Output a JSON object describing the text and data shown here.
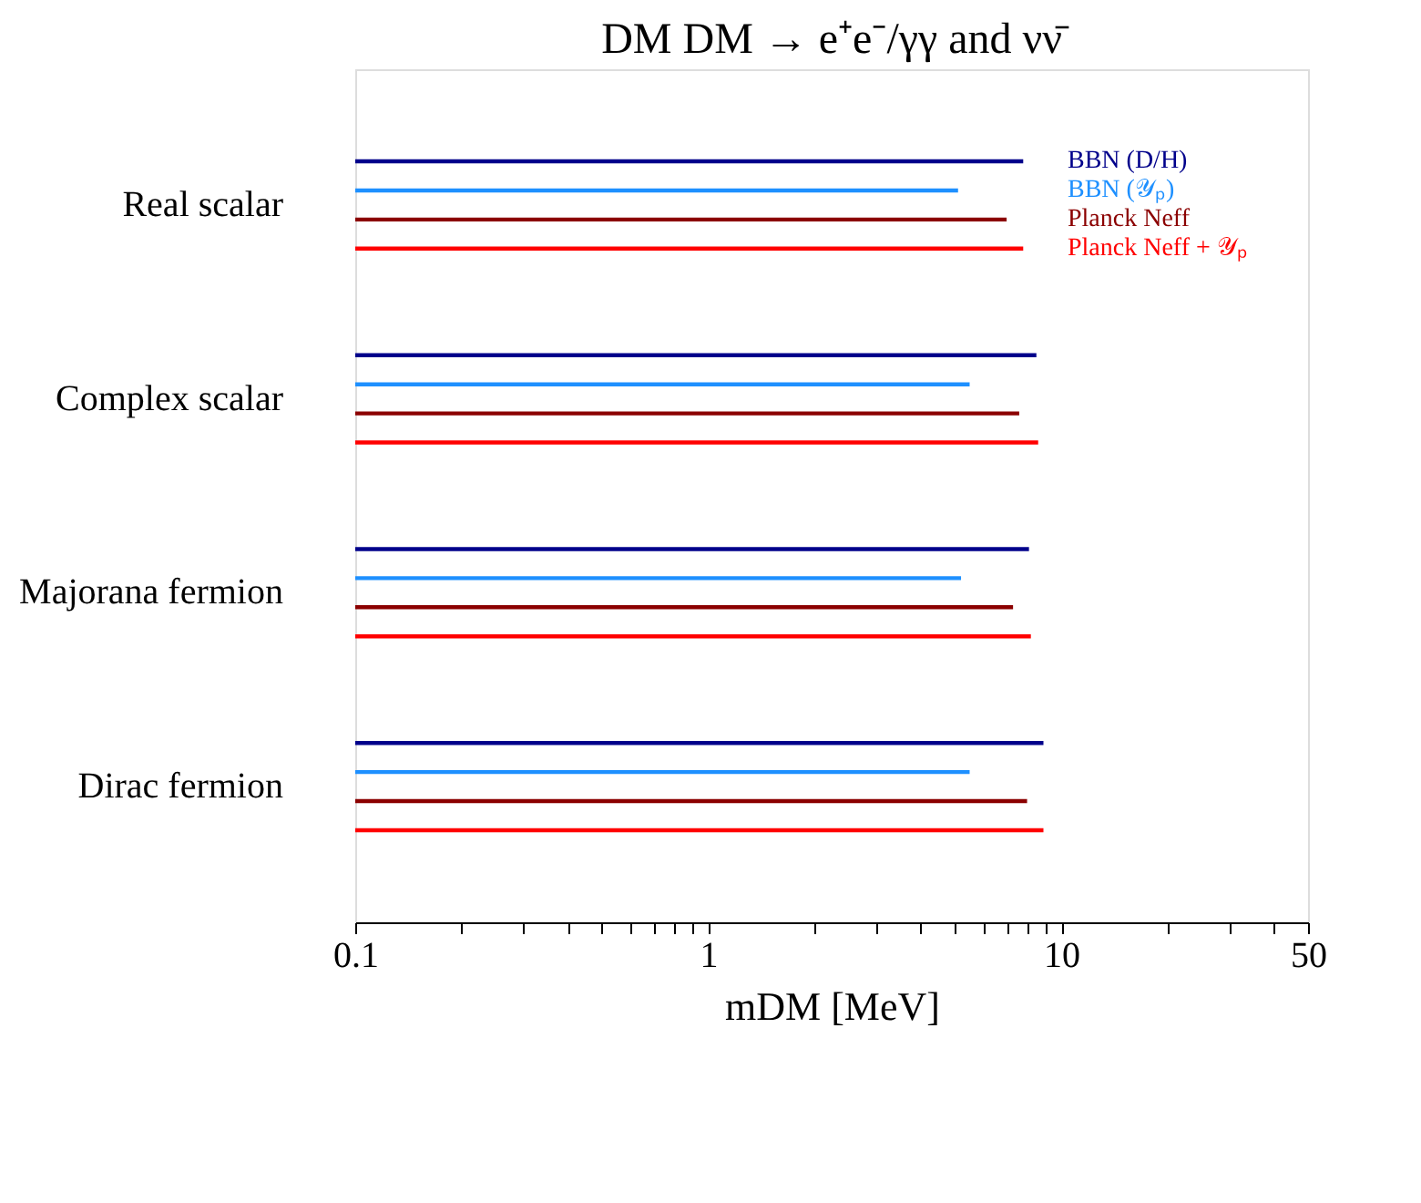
{
  "chart_data": {
    "type": "bar",
    "orientation": "horizontal",
    "title": "DM DM → e⁺e⁻/γγ and νν̄",
    "xlabel": "mDM [MeV]",
    "categories": [
      "Real scalar",
      "Complex scalar",
      "Majorana fermion",
      "Dirac fermion"
    ],
    "series": [
      {
        "name": "BBN (D/H)",
        "color": "#00008b",
        "values": [
          7.8,
          8.5,
          8.1,
          8.9
        ]
      },
      {
        "name": "BBN (𝒴ₚ)",
        "color": "#1e90ff",
        "values": [
          5.1,
          5.5,
          5.2,
          5.5
        ]
      },
      {
        "name": "Planck Neff",
        "color": "#8b0000",
        "values": [
          7.0,
          7.6,
          7.3,
          8.0
        ]
      },
      {
        "name": "Planck Neff + 𝒴ₚ",
        "color": "#ff0000",
        "values": [
          7.8,
          8.6,
          8.2,
          8.9
        ]
      }
    ],
    "log": "x",
    "xlim": [
      0.1,
      50
    ],
    "xticks": [
      0.1,
      {
        "value": 0.2,
        "label": null
      },
      {
        "value": 0.3,
        "label": null
      },
      {
        "value": 0.4,
        "label": null
      },
      {
        "value": 0.5,
        "label": null
      },
      {
        "value": 0.6,
        "label": null
      },
      {
        "value": 0.7,
        "label": null
      },
      {
        "value": 0.8,
        "label": null
      },
      {
        "value": 0.9,
        "label": null
      },
      1,
      {
        "value": 2,
        "label": null
      },
      {
        "value": 3,
        "label": null
      },
      {
        "value": 4,
        "label": null
      },
      {
        "value": 5,
        "label": null
      },
      {
        "value": 6,
        "label": null
      },
      {
        "value": 7,
        "label": null
      },
      {
        "value": 8,
        "label": null
      },
      {
        "value": 9,
        "label": null
      },
      10,
      {
        "value": 20,
        "label": null
      },
      {
        "value": 30,
        "label": null
      },
      {
        "value": 40,
        "label": null
      },
      50
    ],
    "grid": false,
    "legend": "top right"
  }
}
